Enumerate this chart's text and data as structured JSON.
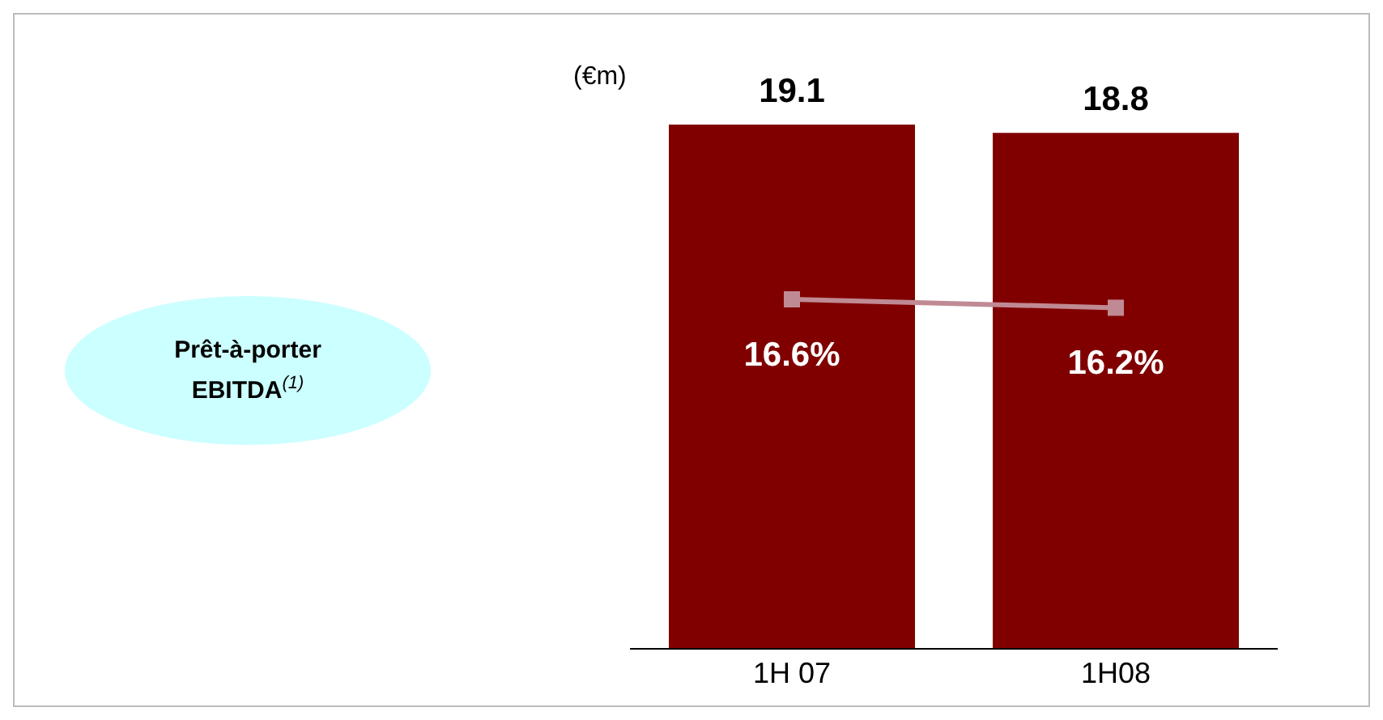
{
  "chart_data": {
    "type": "bar",
    "ylabel": "(€m)",
    "categories": [
      "1H 07",
      "1H08"
    ],
    "series": [
      {
        "color": "#800000",
        "values": [
          19.1,
          18.8
        ]
      },
      {
        "type": "line",
        "axis": "y2",
        "color": "#c08a94",
        "values": [
          16.6,
          16.2
        ],
        "value_labels": [
          "16.6%",
          "16.2%"
        ]
      }
    ],
    "data_labels": true,
    "marker": "square",
    "tick_labels": "x",
    "annotations": [
      "Prêt-à-porter EBITDA$^{(1)}$"
    ]
  }
}
